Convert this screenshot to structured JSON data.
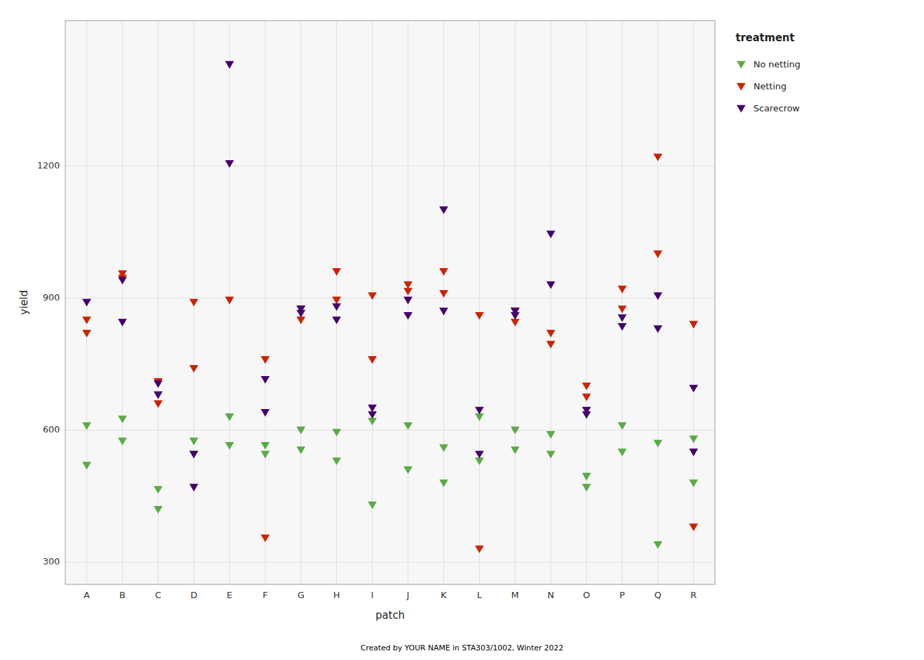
{
  "chart_data": {
    "type": "scatter",
    "x_label": "patch",
    "y_label": "yield",
    "legend_title": "treatment",
    "caption": "Created by YOUR NAME in STA303/1002, Winter 2022",
    "categories": [
      "A",
      "B",
      "C",
      "D",
      "E",
      "F",
      "G",
      "H",
      "I",
      "J",
      "K",
      "L",
      "M",
      "N",
      "O",
      "P",
      "Q",
      "R"
    ],
    "series": [
      {
        "name": "No netting",
        "color": "#5aaa46",
        "marker": "triangle-down",
        "values": [
          [
            610,
            520
          ],
          [
            625,
            575
          ],
          [
            465,
            420
          ],
          [
            575,
            545
          ],
          [
            630,
            565
          ],
          [
            565,
            545
          ],
          [
            600,
            555
          ],
          [
            595,
            530
          ],
          [
            620,
            430
          ],
          [
            610,
            510
          ],
          [
            560,
            480
          ],
          [
            630,
            530
          ],
          [
            600,
            555
          ],
          [
            590,
            545
          ],
          [
            495,
            470
          ],
          [
            610,
            550
          ],
          [
            570,
            340
          ],
          [
            580,
            480
          ]
        ]
      },
      {
        "name": "Netting",
        "color": "#cc2200",
        "marker": "triangle-down",
        "values": [
          [
            850,
            820
          ],
          [
            955,
            945
          ],
          [
            710,
            660
          ],
          [
            890,
            740
          ],
          [
            895
          ],
          [
            760,
            355
          ],
          [
            875,
            850
          ],
          [
            960,
            895
          ],
          [
            905,
            760
          ],
          [
            930,
            915
          ],
          [
            960,
            910
          ],
          [
            860,
            330
          ],
          [
            870,
            845
          ],
          [
            820,
            795
          ],
          [
            700,
            675
          ],
          [
            920,
            875
          ],
          [
            1220,
            1000
          ],
          [
            840,
            380
          ]
        ]
      },
      {
        "name": "Scarecrow",
        "color": "#44006e",
        "marker": "triangle-down",
        "values": [
          [
            890
          ],
          [
            940,
            845
          ],
          [
            705,
            680
          ],
          [
            545,
            470
          ],
          [
            1430,
            1205
          ],
          [
            715,
            640
          ],
          [
            875,
            865
          ],
          [
            880,
            850
          ],
          [
            650,
            635
          ],
          [
            895,
            860
          ],
          [
            1100,
            870
          ],
          [
            645,
            545
          ],
          [
            870,
            860
          ],
          [
            1045,
            930
          ],
          [
            645,
            635
          ],
          [
            855,
            835
          ],
          [
            905,
            830
          ],
          [
            695,
            550
          ]
        ]
      }
    ],
    "ylim": [
      250,
      1530
    ],
    "yticks": [
      300,
      600,
      900,
      1200
    ],
    "grid": true,
    "legend": "right"
  }
}
